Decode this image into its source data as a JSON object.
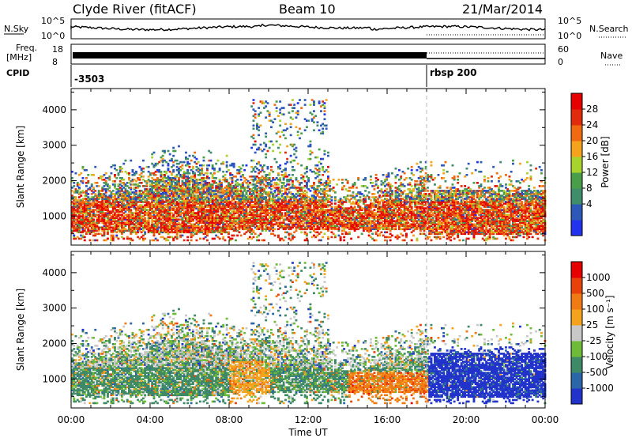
{
  "header": {
    "title": "Clyde River (fitACF)",
    "beam": "Beam 10",
    "date": "21/Mar/2014"
  },
  "aux": {
    "nsky_label": "N.Sky",
    "nsky_ticks": [
      "10^5",
      "10^0"
    ],
    "nsearch_label": "N.Search",
    "nsearch_ticks": [
      "10^5",
      "10^0"
    ],
    "freq_label_1": "Freq.",
    "freq_label_2": "[MHz]",
    "freq_ticks": [
      "18",
      "8"
    ],
    "nave_label": "Nave",
    "nave_ticks": [
      "60",
      "0"
    ],
    "cpid_label": "CPID",
    "cpid_segments": [
      {
        "label": "-3503",
        "start_hour": 0
      },
      {
        "label": "rbsp 200",
        "start_hour": 18
      }
    ]
  },
  "chart_data": [
    {
      "type": "heatmap",
      "name": "power",
      "ylabel": "Slant Range [km]",
      "xlabel": "",
      "x_range_hours": [
        0,
        24
      ],
      "ylim": [
        180,
        4600
      ],
      "y_ticks": [
        "1000",
        "2000",
        "3000",
        "4000"
      ],
      "colorbar_label": "Power [dB]",
      "colorbar_ticks": [
        "28",
        "24",
        "20",
        "16",
        "12",
        "8",
        "4"
      ],
      "colors": [
        "#2233ee",
        "#2c58b8",
        "#3f8d6a",
        "#4a9e4a",
        "#a8d22c",
        "#f5a31d",
        "#f06a12",
        "#e02b0c",
        "#e60000"
      ],
      "scatter_extends_to_km": 4300
    },
    {
      "type": "heatmap",
      "name": "velocity",
      "ylabel": "Slant Range [km]",
      "xlabel": "Time UT",
      "x_range_hours": [
        0,
        24
      ],
      "ylim": [
        180,
        4600
      ],
      "y_ticks": [
        "1000",
        "2000",
        "3000",
        "4000"
      ],
      "x_ticks": [
        "00:00",
        "04:00",
        "08:00",
        "12:00",
        "16:00",
        "20:00",
        "00:00"
      ],
      "colorbar_label": "Velocity [m s⁻¹]",
      "colorbar_ticks": [
        "1000",
        "500",
        "100",
        "25",
        "-25",
        "-100",
        "-500",
        "-1000"
      ],
      "colors": [
        "#2233cc",
        "#2b66a8",
        "#3f8a66",
        "#6dbb36",
        "#c8c8c8",
        "#f5a31d",
        "#f07a14",
        "#e8420c",
        "#e60000"
      ]
    }
  ]
}
